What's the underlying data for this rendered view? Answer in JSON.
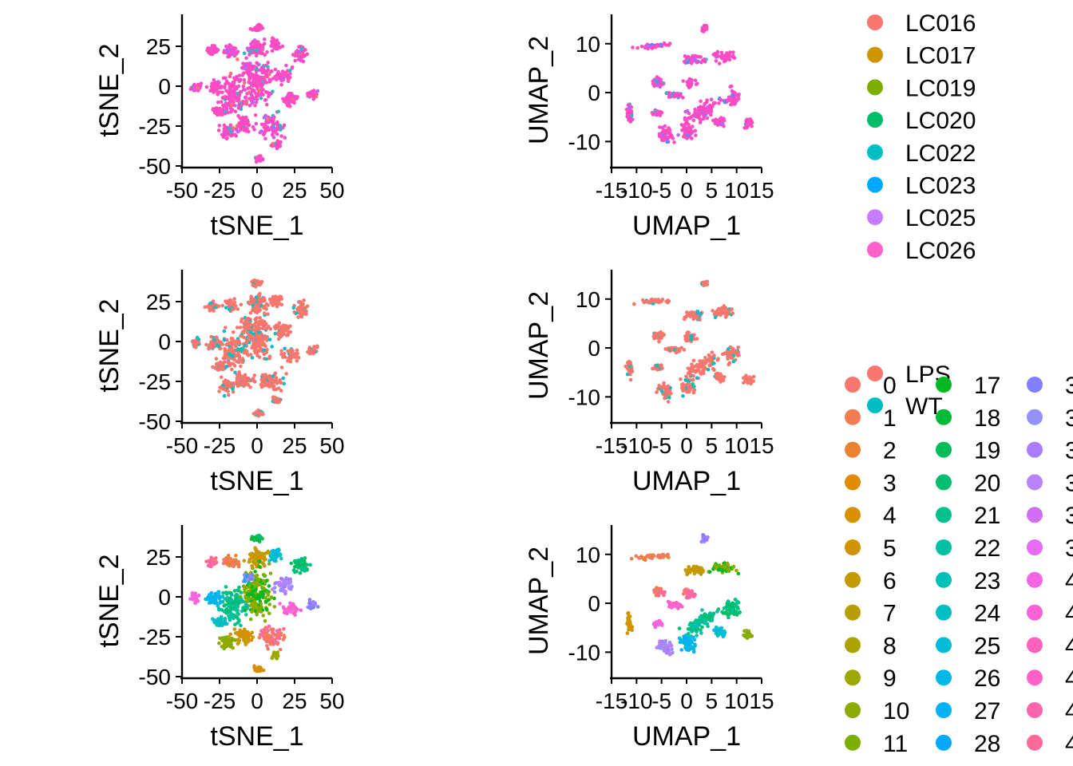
{
  "chart_data": [
    {
      "type": "scatter",
      "xlabel": "tSNE_1",
      "ylabel": "tSNE_2",
      "xlim": [
        -50,
        50
      ],
      "ylim": [
        -50,
        45
      ],
      "xticks": [
        "-50",
        "-25",
        "0",
        "25",
        "50"
      ],
      "yticks": [
        "-50",
        "-25",
        "0",
        "25"
      ],
      "color_by": "sample",
      "dominant": "#FF4BC4",
      "minor": [
        "#B565FF",
        "#F8766D",
        "#2AB9C1"
      ]
    },
    {
      "type": "scatter",
      "xlabel": "UMAP_1",
      "ylabel": "UMAP_2",
      "xlim": [
        -15,
        15
      ],
      "ylim": [
        -15,
        16
      ],
      "xticks": [
        "-15",
        "-10",
        "-5",
        "0",
        "5",
        "10",
        "15"
      ],
      "yticks": [
        "-10",
        "0",
        "10"
      ],
      "color_by": "sample",
      "dominant": "#FF4BC4",
      "minor": [
        "#B565FF",
        "#4C8CFF",
        "#2AB9C1"
      ]
    },
    {
      "type": "scatter",
      "xlabel": "tSNE_1",
      "ylabel": "tSNE_2",
      "xlim": [
        -50,
        50
      ],
      "ylim": [
        -50,
        45
      ],
      "xticks": [
        "-50",
        "-25",
        "0",
        "25",
        "50"
      ],
      "yticks": [
        "-50",
        "-25",
        "0",
        "25"
      ],
      "color_by": "condition",
      "dominant": "#F8766D",
      "minor": [
        "#00BFC4"
      ]
    },
    {
      "type": "scatter",
      "xlabel": "UMAP_1",
      "ylabel": "UMAP_2",
      "xlim": [
        -15,
        15
      ],
      "ylim": [
        -15,
        16
      ],
      "xticks": [
        "-15",
        "-10",
        "-5",
        "0",
        "5",
        "10",
        "15"
      ],
      "yticks": [
        "-10",
        "0",
        "10"
      ],
      "color_by": "condition",
      "dominant": "#F8766D",
      "minor": [
        "#00BFC4"
      ]
    },
    {
      "type": "scatter",
      "xlabel": "tSNE_1",
      "ylabel": "tSNE_2",
      "xlim": [
        -50,
        50
      ],
      "ylim": [
        -50,
        45
      ],
      "xticks": [
        "-50",
        "-25",
        "0",
        "25",
        "50"
      ],
      "yticks": [
        "-50",
        "-25",
        "0",
        "25"
      ],
      "color_by": "cluster",
      "dominant": "mixed",
      "minor": []
    },
    {
      "type": "scatter",
      "xlabel": "UMAP_1",
      "ylabel": "UMAP_2",
      "xlim": [
        -15,
        15
      ],
      "ylim": [
        -15,
        16
      ],
      "xticks": [
        "-15",
        "-10",
        "-5",
        "0",
        "5",
        "10",
        "15"
      ],
      "yticks": [
        "-10",
        "0",
        "10"
      ],
      "color_by": "cluster",
      "dominant": "mixed",
      "minor": []
    }
  ],
  "legends": {
    "sample": [
      {
        "label": "LC016",
        "color": "#F8766D"
      },
      {
        "label": "LC017",
        "color": "#CD9600"
      },
      {
        "label": "LC019",
        "color": "#7CAE00"
      },
      {
        "label": "LC020",
        "color": "#00BE67"
      },
      {
        "label": "LC022",
        "color": "#00BFC4"
      },
      {
        "label": "LC023",
        "color": "#00A9FF"
      },
      {
        "label": "LC025",
        "color": "#C77CFF"
      },
      {
        "label": "LC026",
        "color": "#FF61CC"
      }
    ],
    "condition": [
      {
        "label": "LPS",
        "color": "#F8766D"
      },
      {
        "label": "WT",
        "color": "#00BFC4"
      }
    ],
    "cluster": {
      "col1": [
        {
          "label": "0",
          "color": "#F8766D"
        },
        {
          "label": "1",
          "color": "#F27D52"
        },
        {
          "label": "2",
          "color": "#EA8331"
        },
        {
          "label": "3",
          "color": "#E08B00"
        },
        {
          "label": "4",
          "color": "#D89000"
        },
        {
          "label": "5",
          "color": "#CF9400"
        },
        {
          "label": "6",
          "color": "#C49A00"
        },
        {
          "label": "7",
          "color": "#B89E00"
        },
        {
          "label": "8",
          "color": "#ABA300"
        },
        {
          "label": "9",
          "color": "#9CA700"
        },
        {
          "label": "10",
          "color": "#8CAB00"
        },
        {
          "label": "11",
          "color": "#7CAE00"
        }
      ],
      "col2": [
        {
          "label": "17",
          "color": "#00B81F"
        },
        {
          "label": "18",
          "color": "#00BA38"
        },
        {
          "label": "19",
          "color": "#00BC59"
        },
        {
          "label": "20",
          "color": "#00BE70"
        },
        {
          "label": "21",
          "color": "#00C08B"
        },
        {
          "label": "22",
          "color": "#00C0A3"
        },
        {
          "label": "23",
          "color": "#00C0B8"
        },
        {
          "label": "24",
          "color": "#00BFC4"
        },
        {
          "label": "25",
          "color": "#00BCD8"
        },
        {
          "label": "26",
          "color": "#00B8E7"
        },
        {
          "label": "27",
          "color": "#00B2F3"
        },
        {
          "label": "28",
          "color": "#00A9FF"
        }
      ],
      "col3": [
        {
          "label": "3",
          "color": "#7F7FFF"
        },
        {
          "label": "3",
          "color": "#9590FF"
        },
        {
          "label": "3",
          "color": "#A87CFF"
        },
        {
          "label": "3",
          "color": "#B983FF"
        },
        {
          "label": "3",
          "color": "#D26DF6"
        },
        {
          "label": "3",
          "color": "#E76BF3"
        },
        {
          "label": "4",
          "color": "#F564E3"
        },
        {
          "label": "4",
          "color": "#FB61D7"
        },
        {
          "label": "4",
          "color": "#FF62BC"
        },
        {
          "label": "4",
          "color": "#FF61C9"
        },
        {
          "label": "4",
          "color": "#FF65AE"
        },
        {
          "label": "4",
          "color": "#FF6A98"
        }
      ]
    }
  }
}
